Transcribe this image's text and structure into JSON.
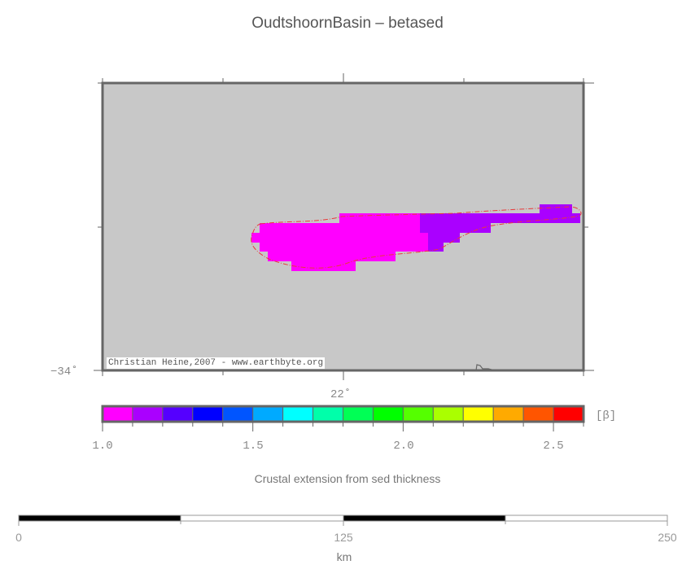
{
  "title": "OudtshoornBasin – betased",
  "map": {
    "background_color": "#c8c8c8",
    "lon_label": "22˚",
    "lat_label": "−34˚",
    "credit": "Christian Heine,2007 - www.earthbyte.org",
    "cells": [
      {
        "value": 1.0,
        "color": "#ff00ff"
      },
      {
        "value": 1.1,
        "color": "#aa00ff"
      }
    ]
  },
  "colorbar": {
    "unit": "[β]",
    "range": [
      1.0,
      2.6
    ],
    "step": 0.1,
    "colors": [
      "#ff00ff",
      "#aa00ff",
      "#5500ff",
      "#0000ff",
      "#0055ff",
      "#00aaff",
      "#00ffff",
      "#00ffaa",
      "#00ff55",
      "#00ff00",
      "#55ff00",
      "#aaff00",
      "#ffff00",
      "#ffaa00",
      "#ff5500",
      "#ff0000"
    ],
    "tick_labels": [
      "1.0",
      "1.5",
      "2.0",
      "2.5"
    ],
    "caption": "Crustal extension from sed thickness"
  },
  "scalebar": {
    "labels": [
      "0",
      "125",
      "250"
    ],
    "unit": "km"
  }
}
